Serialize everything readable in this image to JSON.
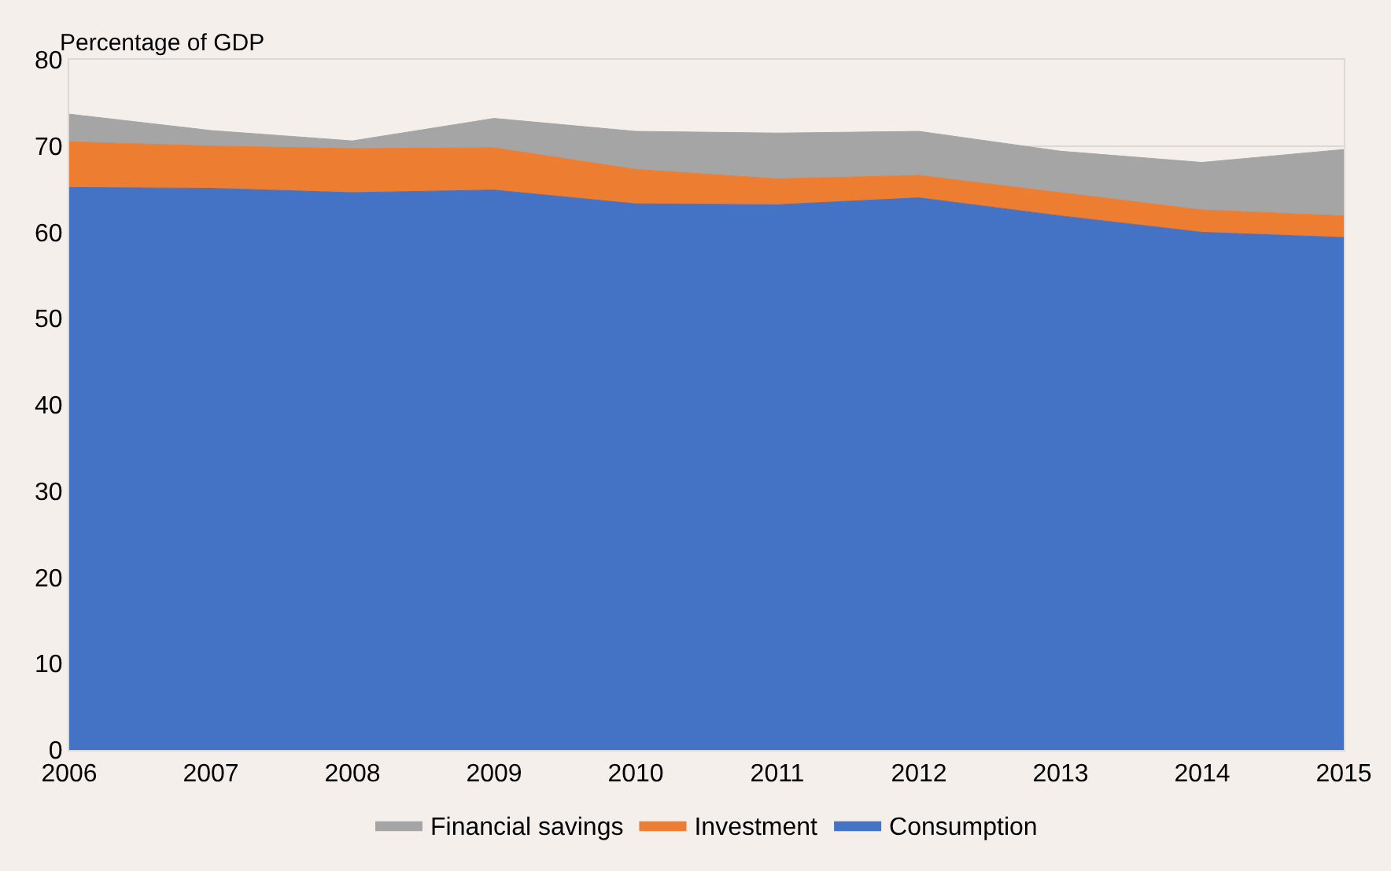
{
  "chart_data": {
    "type": "area",
    "stacked": true,
    "ylabel": "Percentage of GDP",
    "categories": [
      "2006",
      "2007",
      "2008",
      "2009",
      "2010",
      "2011",
      "2012",
      "2013",
      "2014",
      "2015"
    ],
    "series": [
      {
        "name": "Consumption",
        "color": "#4472c4",
        "values": [
          65.2,
          65.1,
          64.6,
          64.9,
          63.3,
          63.2,
          64.0,
          61.9,
          60.0,
          59.4
        ]
      },
      {
        "name": "Investment",
        "color": "#ed7d31",
        "values": [
          5.3,
          4.9,
          5.1,
          4.9,
          4.0,
          3.0,
          2.6,
          2.7,
          2.6,
          2.5
        ]
      },
      {
        "name": "Financial savings",
        "color": "#a5a5a5",
        "values": [
          3.2,
          1.8,
          0.9,
          3.4,
          4.4,
          5.3,
          5.1,
          4.8,
          5.5,
          7.7
        ]
      }
    ],
    "ylim": [
      0,
      80
    ],
    "yticks": [
      0,
      10,
      20,
      30,
      40,
      50,
      60,
      70,
      80
    ],
    "grid": "y",
    "legend": "bottom"
  }
}
